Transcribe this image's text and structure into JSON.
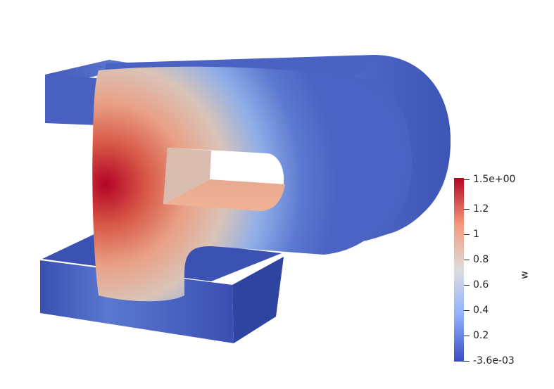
{
  "field": {
    "name": "w",
    "colormap": [
      "#3b4cc0",
      "#8db0fe",
      "#dddddd",
      "#f4987a",
      "#b40426"
    ],
    "ticks": [
      "1.5e+00",
      "1.2",
      "1",
      "0.8",
      "0.6",
      "0.4",
      "0.2",
      "-3.6e-03"
    ]
  }
}
